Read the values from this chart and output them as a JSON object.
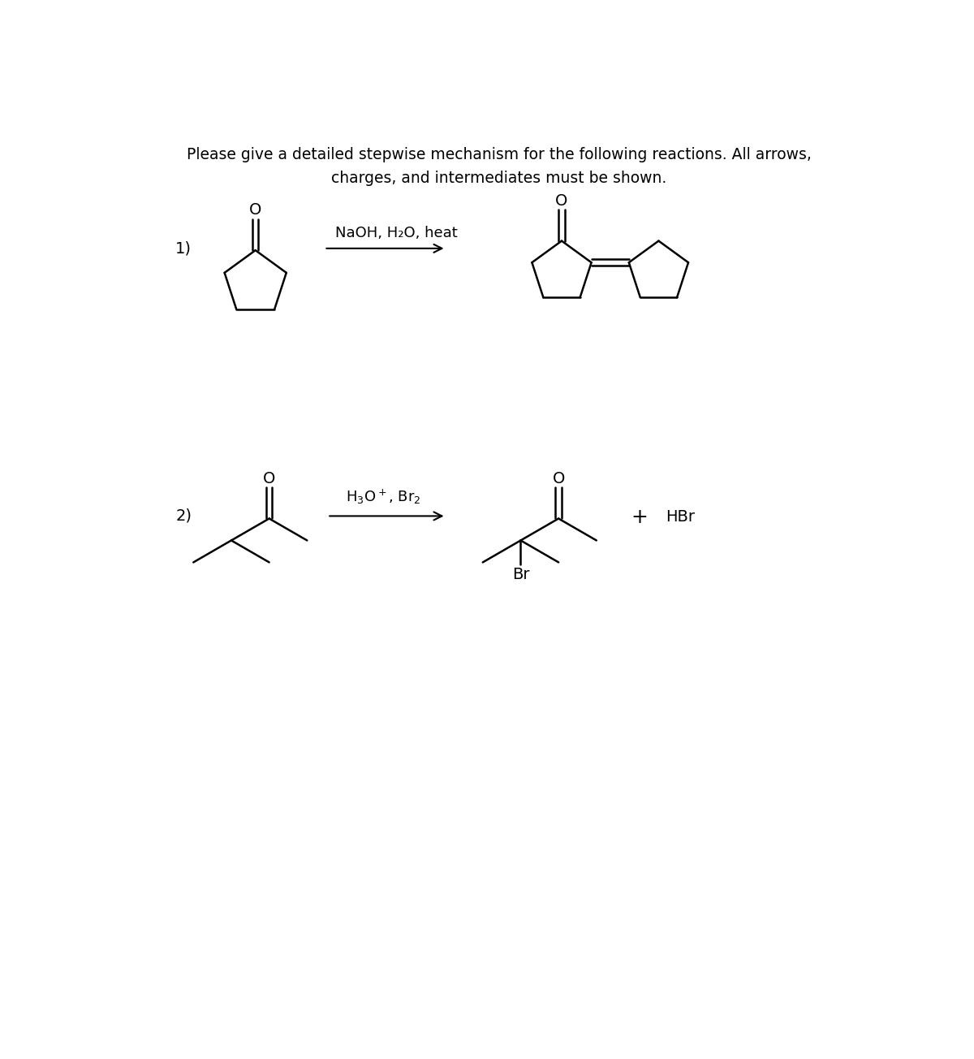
{
  "title_line1": "Please give a detailed stepwise mechanism for the following reactions. All arrows,",
  "title_line2": "charges, and intermediates must be shown.",
  "title_fontsize": 13.5,
  "label1": "1)",
  "label2": "2)",
  "reagent1": "NaOH, H₂O, heat",
  "reagent2": "H₃O⁺, Br₂",
  "plus_hbr": "+",
  "hbr": "HBr",
  "background": "#ffffff",
  "line_color": "#000000",
  "fontsize_label": 14,
  "fontsize_reagent": 13,
  "fontsize_chem": 14,
  "lw": 1.8
}
